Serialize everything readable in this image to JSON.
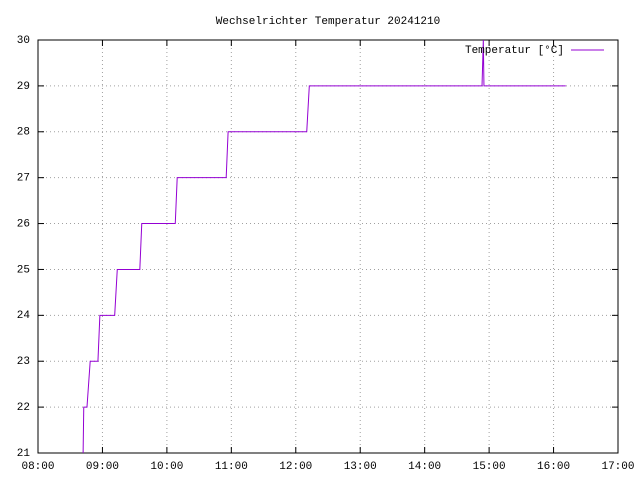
{
  "chart_data": {
    "type": "line",
    "title": "Wechselrichter Temperatur 20241210",
    "xlim": [
      8,
      17
    ],
    "xticks": [
      {
        "value": 8,
        "label": "08:00"
      },
      {
        "value": 9,
        "label": "09:00"
      },
      {
        "value": 10,
        "label": "10:00"
      },
      {
        "value": 11,
        "label": "11:00"
      },
      {
        "value": 12,
        "label": "12:00"
      },
      {
        "value": 13,
        "label": "13:00"
      },
      {
        "value": 14,
        "label": "14:00"
      },
      {
        "value": 15,
        "label": "15:00"
      },
      {
        "value": 16,
        "label": "16:00"
      },
      {
        "value": 17,
        "label": "17:00"
      }
    ],
    "ylim": [
      21,
      30
    ],
    "yticks": [
      21,
      22,
      23,
      24,
      25,
      26,
      27,
      28,
      29,
      30
    ],
    "grid": true,
    "legend": "top-right",
    "series": [
      {
        "name": "Temperatur [°C]",
        "color": "#9400d3",
        "x": [
          8.7,
          8.71,
          8.76,
          8.81,
          8.93,
          8.96,
          9.19,
          9.23,
          9.58,
          9.61,
          10.13,
          10.16,
          10.92,
          10.95,
          12.17,
          12.21,
          14.89,
          14.91,
          14.92,
          16.19
        ],
        "values": [
          21,
          22,
          22,
          23,
          23,
          24,
          24,
          25,
          25,
          26,
          26,
          27,
          27,
          28,
          28,
          29,
          29,
          30,
          29,
          29
        ]
      }
    ]
  }
}
